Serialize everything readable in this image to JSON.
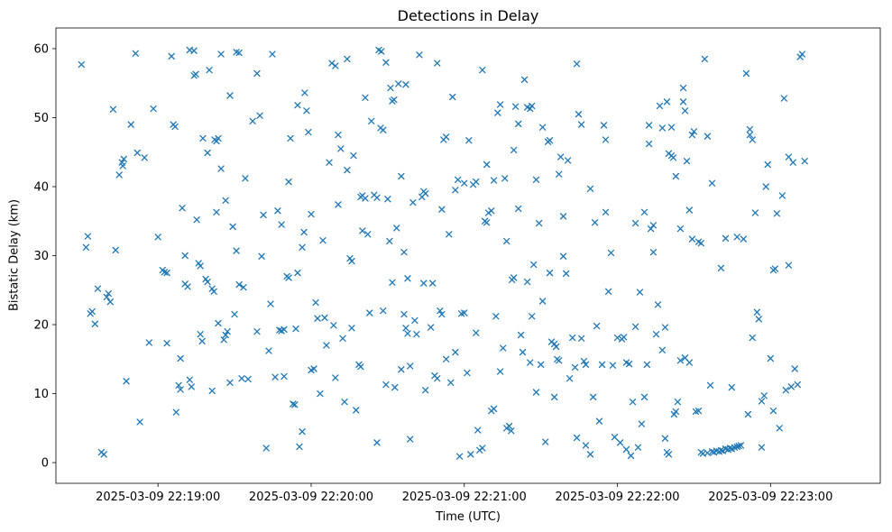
{
  "chart_data": {
    "type": "scatter",
    "title": "Detections in Delay",
    "xlabel": "Time (UTC)",
    "ylabel": "Bistatic Delay (km)",
    "marker": "x",
    "marker_color": "#1f77b4",
    "x_unit": "seconds after 2025-03-09 22:18:00 UTC",
    "xlim": [
      20,
      343
    ],
    "ylim": [
      -3,
      63
    ],
    "grid": false,
    "legend": null,
    "x_ticks": [
      {
        "t": 60,
        "label": "2025-03-09 22:19:00"
      },
      {
        "t": 120,
        "label": "2025-03-09 22:20:00"
      },
      {
        "t": 180,
        "label": "2025-03-09 22:21:00"
      },
      {
        "t": 240,
        "label": "2025-03-09 22:22:00"
      },
      {
        "t": 300,
        "label": "2025-03-09 22:23:00"
      }
    ],
    "y_ticks": [
      0,
      10,
      20,
      30,
      40,
      50,
      60
    ],
    "points": [
      [
        30,
        57.7
      ],
      [
        31.8,
        31.2
      ],
      [
        32.5,
        32.8
      ],
      [
        33.5,
        21.6
      ],
      [
        34.2,
        21.9
      ],
      [
        35.3,
        20.1
      ],
      [
        36.4,
        25.2
      ],
      [
        37.8,
        1.5
      ],
      [
        38.8,
        1.2
      ],
      [
        39.9,
        24
      ],
      [
        40.6,
        24.5
      ],
      [
        41.3,
        23.3
      ],
      [
        42.4,
        51.2
      ],
      [
        43.4,
        30.8
      ],
      [
        44.8,
        41.7
      ],
      [
        45.9,
        43.5
      ],
      [
        46.2,
        43
      ],
      [
        46.6,
        44
      ],
      [
        47.6,
        11.8
      ],
      [
        49.4,
        49
      ],
      [
        51.2,
        59.3
      ],
      [
        51.9,
        44.9
      ],
      [
        52.9,
        5.9
      ],
      [
        54.7,
        44.2
      ],
      [
        56.5,
        17.4
      ],
      [
        58.2,
        51.3
      ],
      [
        60,
        32.7
      ],
      [
        61.8,
        27.9
      ],
      [
        62.5,
        27.6
      ],
      [
        63.5,
        27.5
      ],
      [
        63.5,
        17.3
      ],
      [
        65.3,
        58.9
      ],
      [
        66,
        49
      ],
      [
        66.7,
        48.7
      ],
      [
        67.1,
        7.3
      ],
      [
        68.1,
        11.2
      ],
      [
        68.8,
        10.6
      ],
      [
        68.8,
        15.1
      ],
      [
        69.5,
        36.9
      ],
      [
        70.6,
        30
      ],
      [
        70.6,
        25.9
      ],
      [
        71.6,
        25.5
      ],
      [
        72.4,
        12
      ],
      [
        73.1,
        11
      ],
      [
        72.4,
        59.8
      ],
      [
        74.1,
        59.7
      ],
      [
        74.1,
        56.1
      ],
      [
        74.8,
        56.3
      ],
      [
        75.2,
        35.2
      ],
      [
        75.9,
        28.9
      ],
      [
        76.6,
        28.5
      ],
      [
        76.6,
        18.6
      ],
      [
        77.3,
        17.6
      ],
      [
        77.6,
        47
      ],
      [
        78.7,
        26.6
      ],
      [
        79.4,
        26.2
      ],
      [
        79.4,
        44.9
      ],
      [
        80.1,
        56.9
      ],
      [
        81.2,
        25.2
      ],
      [
        81.9,
        24.8
      ],
      [
        81.2,
        10.4
      ],
      [
        82.2,
        46.8
      ],
      [
        82.9,
        46.6
      ],
      [
        83.6,
        47
      ],
      [
        82.9,
        36.3
      ],
      [
        83.6,
        20.2
      ],
      [
        84.7,
        59.2
      ],
      [
        84.7,
        42.6
      ],
      [
        85.8,
        17.8
      ],
      [
        86.5,
        18.5
      ],
      [
        87.2,
        19
      ],
      [
        86.5,
        38
      ],
      [
        88.2,
        11.6
      ],
      [
        88.2,
        53.2
      ],
      [
        89.3,
        34.2
      ],
      [
        90,
        21.5
      ],
      [
        90.7,
        59.5
      ],
      [
        91.8,
        59.4
      ],
      [
        90.7,
        30.7
      ],
      [
        91.8,
        25.8
      ],
      [
        92.8,
        12.2
      ],
      [
        93.5,
        25.4
      ],
      [
        94.2,
        41.2
      ],
      [
        95.3,
        12.1
      ],
      [
        97.1,
        49.5
      ],
      [
        98.8,
        56.4
      ],
      [
        98.8,
        19
      ],
      [
        99.9,
        50.3
      ],
      [
        100.6,
        29.9
      ],
      [
        101.3,
        35.9
      ],
      [
        102.4,
        2.1
      ],
      [
        103.4,
        16.2
      ],
      [
        104.1,
        23
      ],
      [
        104.8,
        59.2
      ],
      [
        105.9,
        12.4
      ],
      [
        106.9,
        36.5
      ],
      [
        107.6,
        19.2
      ],
      [
        108.4,
        19.1
      ],
      [
        109.4,
        19.3
      ],
      [
        108.4,
        34.5
      ],
      [
        109.4,
        12.5
      ],
      [
        110.5,
        27
      ],
      [
        111.2,
        26.8
      ],
      [
        111.2,
        40.7
      ],
      [
        111.9,
        47
      ],
      [
        112.9,
        8.5
      ],
      [
        113.6,
        8.4
      ],
      [
        114,
        19.4
      ],
      [
        114.7,
        51.8
      ],
      [
        114.7,
        27.5
      ],
      [
        115.4,
        2.3
      ],
      [
        116.5,
        4.5
      ],
      [
        116.5,
        31.2
      ],
      [
        117.2,
        33.4
      ],
      [
        117.5,
        53.6
      ],
      [
        118.2,
        51
      ],
      [
        118.9,
        47.9
      ],
      [
        120,
        13.4
      ],
      [
        121.1,
        13.6
      ],
      [
        120,
        36
      ],
      [
        121.8,
        23.2
      ],
      [
        122.5,
        20.9
      ],
      [
        123.5,
        10
      ],
      [
        124.6,
        32.2
      ],
      [
        125.3,
        21
      ],
      [
        126,
        17
      ],
      [
        127.1,
        43.5
      ],
      [
        128.1,
        57.9
      ],
      [
        129.5,
        57.5
      ],
      [
        128.8,
        19.9
      ],
      [
        129.5,
        12.3
      ],
      [
        130.6,
        47.5
      ],
      [
        130.6,
        37.4
      ],
      [
        131.6,
        45.5
      ],
      [
        132.4,
        18
      ],
      [
        133.1,
        8.8
      ],
      [
        134.1,
        58.5
      ],
      [
        134.1,
        42.4
      ],
      [
        135.2,
        29.6
      ],
      [
        135.9,
        29.2
      ],
      [
        135.9,
        19.5
      ],
      [
        136.6,
        44.5
      ],
      [
        137.6,
        7.6
      ],
      [
        138.7,
        14.2
      ],
      [
        139.4,
        13.9
      ],
      [
        139.4,
        38.5
      ],
      [
        140.1,
        38.7
      ],
      [
        141.2,
        38.3
      ],
      [
        140.1,
        33.6
      ],
      [
        141.2,
        52.9
      ],
      [
        142.2,
        33.1
      ],
      [
        142.9,
        21.7
      ],
      [
        143.6,
        49.5
      ],
      [
        144.7,
        38.8
      ],
      [
        145.8,
        38.4
      ],
      [
        145.8,
        2.9
      ],
      [
        146.5,
        59.8
      ],
      [
        147.5,
        59.6
      ],
      [
        147.2,
        48.5
      ],
      [
        148.2,
        48.2
      ],
      [
        148.2,
        22
      ],
      [
        149.3,
        11.3
      ],
      [
        149.3,
        58
      ],
      [
        150,
        38.2
      ],
      [
        150.7,
        32.1
      ],
      [
        151.1,
        54.3
      ],
      [
        151.8,
        52.4
      ],
      [
        152.5,
        52.6
      ],
      [
        151.8,
        26.1
      ],
      [
        152.8,
        10.9
      ],
      [
        153.5,
        34
      ],
      [
        154.2,
        54.9
      ],
      [
        155.3,
        41.5
      ],
      [
        155.3,
        13.5
      ],
      [
        156.4,
        30.5
      ],
      [
        156.4,
        21.5
      ],
      [
        157.1,
        19.5
      ],
      [
        157.8,
        18.7
      ],
      [
        157.1,
        54.8
      ],
      [
        157.8,
        26.7
      ],
      [
        158.8,
        3.4
      ],
      [
        158.8,
        14
      ],
      [
        159.9,
        37.7
      ],
      [
        160.6,
        20.6
      ],
      [
        161.3,
        18.6
      ],
      [
        162.4,
        59.1
      ],
      [
        163.4,
        38.5
      ],
      [
        164.1,
        39.3
      ],
      [
        164.8,
        39
      ],
      [
        164.1,
        26
      ],
      [
        164.8,
        10.5
      ],
      [
        166.9,
        19.6
      ],
      [
        167.6,
        26
      ],
      [
        168.4,
        12.6
      ],
      [
        169.4,
        12.2
      ],
      [
        169.4,
        57.9
      ],
      [
        170.5,
        22
      ],
      [
        171.2,
        21.5
      ],
      [
        171.2,
        36.7
      ],
      [
        171.9,
        46.8
      ],
      [
        172.9,
        47.2
      ],
      [
        172.9,
        15
      ],
      [
        174,
        33.1
      ],
      [
        174.7,
        11.6
      ],
      [
        175.4,
        53
      ],
      [
        176.5,
        39.5
      ],
      [
        176.5,
        16
      ],
      [
        177.5,
        41
      ],
      [
        178.2,
        0.9
      ],
      [
        178.9,
        21.6
      ],
      [
        180,
        21.7
      ],
      [
        180,
        40.5
      ],
      [
        181.1,
        13
      ],
      [
        181.8,
        46.7
      ],
      [
        182.5,
        1.2
      ],
      [
        183.5,
        40.3
      ],
      [
        184.6,
        40.7
      ],
      [
        184.6,
        18.8
      ],
      [
        185.3,
        4.7
      ],
      [
        186,
        1.8
      ],
      [
        187.1,
        2.1
      ],
      [
        187.1,
        56.9
      ],
      [
        188.1,
        35
      ],
      [
        188.8,
        34.8
      ],
      [
        188.8,
        43.2
      ],
      [
        189.5,
        36.2
      ],
      [
        190.6,
        36.5
      ],
      [
        190.6,
        7.5
      ],
      [
        191.6,
        7.8
      ],
      [
        191.6,
        40.9
      ],
      [
        192.4,
        21.2
      ],
      [
        193.1,
        50.7
      ],
      [
        194.1,
        51.9
      ],
      [
        194.1,
        13.2
      ],
      [
        195.2,
        16.6
      ],
      [
        195.9,
        41.2
      ],
      [
        196.6,
        32.1
      ],
      [
        196.6,
        5
      ],
      [
        197.6,
        5.3
      ],
      [
        198.4,
        4.6
      ],
      [
        198.7,
        26.5
      ],
      [
        199.4,
        26.8
      ],
      [
        199.4,
        45.3
      ],
      [
        200.1,
        51.6
      ],
      [
        201.2,
        49.1
      ],
      [
        201.2,
        36.8
      ],
      [
        202.2,
        18.5
      ],
      [
        202.9,
        16
      ],
      [
        203.6,
        55.5
      ],
      [
        204.7,
        51.5
      ],
      [
        205.8,
        51.3
      ],
      [
        206.5,
        51.7
      ],
      [
        204.7,
        26.2
      ],
      [
        205.8,
        14.5
      ],
      [
        206.5,
        21.2
      ],
      [
        207.2,
        28.7
      ],
      [
        208.2,
        41
      ],
      [
        208.2,
        10.2
      ],
      [
        209.3,
        34.7
      ],
      [
        210,
        14.2
      ],
      [
        210.7,
        48.6
      ],
      [
        210.7,
        23.4
      ],
      [
        211.8,
        3
      ],
      [
        212.8,
        46.5
      ],
      [
        213.5,
        46.7
      ],
      [
        213.5,
        27.5
      ],
      [
        214.2,
        17.5
      ],
      [
        215.3,
        17.2
      ],
      [
        216,
        16.8
      ],
      [
        215.3,
        9.5
      ],
      [
        216.4,
        15
      ],
      [
        217.1,
        14.8
      ],
      [
        217.1,
        41.8
      ],
      [
        217.8,
        44.3
      ],
      [
        218.8,
        35.7
      ],
      [
        218.8,
        29.9
      ],
      [
        219.9,
        27.4
      ],
      [
        220.6,
        43.8
      ],
      [
        221.3,
        12.2
      ],
      [
        222.4,
        18.1
      ],
      [
        223.4,
        13.8
      ],
      [
        224.1,
        57.8
      ],
      [
        224.1,
        3.6
      ],
      [
        224.8,
        50.5
      ],
      [
        225.9,
        49
      ],
      [
        225.9,
        18
      ],
      [
        226.9,
        14.7
      ],
      [
        227.6,
        14.2
      ],
      [
        227.6,
        2.5
      ],
      [
        229.4,
        39.7
      ],
      [
        229.4,
        1.2
      ],
      [
        230.5,
        9.5
      ],
      [
        231.2,
        34.8
      ],
      [
        231.9,
        19.8
      ],
      [
        232.9,
        6
      ],
      [
        234,
        14.2
      ],
      [
        234.7,
        48.9
      ],
      [
        235.4,
        46.8
      ],
      [
        235.4,
        36.3
      ],
      [
        236.5,
        24.8
      ],
      [
        237.5,
        30.4
      ],
      [
        238.2,
        14.1
      ],
      [
        238.9,
        3.7
      ],
      [
        240,
        18.1
      ],
      [
        241.1,
        2.9
      ],
      [
        241.8,
        17.9
      ],
      [
        242.5,
        18.2
      ],
      [
        243.5,
        14.5
      ],
      [
        243.5,
        1.9
      ],
      [
        244.6,
        14.3
      ],
      [
        245.3,
        1
      ],
      [
        246,
        8.8
      ],
      [
        247.1,
        19.7
      ],
      [
        247.1,
        34.7
      ],
      [
        248.1,
        2.2
      ],
      [
        248.8,
        24.7
      ],
      [
        249.5,
        5.6
      ],
      [
        250.6,
        9.5
      ],
      [
        250.6,
        36.3
      ],
      [
        251.6,
        14.2
      ],
      [
        252.4,
        48.9
      ],
      [
        252.4,
        46.2
      ],
      [
        253.1,
        33.9
      ],
      [
        254.1,
        34.4
      ],
      [
        254.1,
        30.5
      ],
      [
        255.2,
        18.6
      ],
      [
        255.9,
        22.9
      ],
      [
        256.6,
        51.7
      ],
      [
        257.6,
        48.5
      ],
      [
        257.6,
        16.3
      ],
      [
        258.7,
        19.6
      ],
      [
        258.7,
        3.5
      ],
      [
        259.4,
        52.3
      ],
      [
        259.4,
        1.5
      ],
      [
        260.1,
        44.8
      ],
      [
        260.1,
        1.2
      ],
      [
        261.2,
        48.6
      ],
      [
        261.2,
        44.5
      ],
      [
        261.9,
        44.2
      ],
      [
        262.2,
        7
      ],
      [
        262.9,
        7.4
      ],
      [
        262.9,
        41.5
      ],
      [
        263.6,
        8.8
      ],
      [
        264.7,
        33.9
      ],
      [
        264.7,
        14.8
      ],
      [
        265.8,
        54.3
      ],
      [
        265.8,
        52.3
      ],
      [
        266.5,
        51
      ],
      [
        266.5,
        15.2
      ],
      [
        267.2,
        43.7
      ],
      [
        268.2,
        36.6
      ],
      [
        268.2,
        14.5
      ],
      [
        269.3,
        47.5
      ],
      [
        269.3,
        32.4
      ],
      [
        270,
        48
      ],
      [
        270.7,
        7.4
      ],
      [
        271.8,
        7.5
      ],
      [
        271.8,
        32
      ],
      [
        272.8,
        31.8
      ],
      [
        272.8,
        1.5
      ],
      [
        273.5,
        1.3
      ],
      [
        274.2,
        58.5
      ],
      [
        275.3,
        47.3
      ],
      [
        275.3,
        1.4
      ],
      [
        276.4,
        11.2
      ],
      [
        277.1,
        40.5
      ],
      [
        277.1,
        1.6
      ],
      [
        277.8,
        1.5
      ],
      [
        278.8,
        1.7
      ],
      [
        279.9,
        1.6
      ],
      [
        280.6,
        28.2
      ],
      [
        280.6,
        1.8
      ],
      [
        281.3,
        1.7
      ],
      [
        282.4,
        32.5
      ],
      [
        282.4,
        2
      ],
      [
        283.4,
        1.9
      ],
      [
        284.1,
        2.1
      ],
      [
        284.8,
        10.9
      ],
      [
        284.8,
        2
      ],
      [
        285.9,
        2.2
      ],
      [
        286.9,
        2.3
      ],
      [
        286.9,
        32.7
      ],
      [
        287.6,
        2.4
      ],
      [
        288.4,
        2.5
      ],
      [
        289.4,
        32.4
      ],
      [
        290.5,
        56.4
      ],
      [
        291.2,
        7
      ],
      [
        291.9,
        47.5
      ],
      [
        291.9,
        48.3
      ],
      [
        292.9,
        46.8
      ],
      [
        292.9,
        18.1
      ],
      [
        294,
        36.2
      ],
      [
        294.7,
        21.8
      ],
      [
        295.4,
        20.8
      ],
      [
        296.5,
        8.9
      ],
      [
        296.5,
        2.2
      ],
      [
        297.5,
        9.7
      ],
      [
        298.2,
        40
      ],
      [
        298.9,
        43.2
      ],
      [
        300,
        15.1
      ],
      [
        301.1,
        27.9
      ],
      [
        301.1,
        7.5
      ],
      [
        301.8,
        28.1
      ],
      [
        302.5,
        36.1
      ],
      [
        303.5,
        5
      ],
      [
        304.6,
        38.7
      ],
      [
        305.3,
        52.8
      ],
      [
        306,
        10.5
      ],
      [
        307.1,
        44.3
      ],
      [
        307.1,
        28.6
      ],
      [
        308.1,
        11
      ],
      [
        308.8,
        43.5
      ],
      [
        309.5,
        13.6
      ],
      [
        310.6,
        11.3
      ],
      [
        311.6,
        58.8
      ],
      [
        312.4,
        59.2
      ],
      [
        313.4,
        43.7
      ]
    ]
  }
}
